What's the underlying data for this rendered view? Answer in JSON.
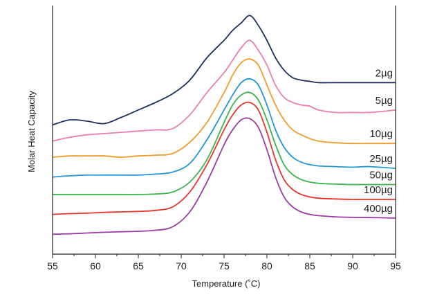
{
  "chart_data": {
    "type": "line",
    "xlabel": "Temperature (˚C)",
    "ylabel": "Molar Heat Capacity",
    "xlim": [
      55,
      95
    ],
    "x_ticks": [
      55,
      60,
      65,
      70,
      75,
      80,
      85,
      90,
      95
    ],
    "y_ticks_shown": false,
    "grid": false,
    "legend": "inline labels at right end of each curve",
    "series": [
      {
        "name": "2µg",
        "color": "#1b2f5e",
        "points": [
          [
            55,
            0.52
          ],
          [
            57,
            0.54
          ],
          [
            59,
            0.535
          ],
          [
            61,
            0.525
          ],
          [
            63,
            0.55
          ],
          [
            65,
            0.58
          ],
          [
            67,
            0.61
          ],
          [
            69,
            0.645
          ],
          [
            71,
            0.7
          ],
          [
            73,
            0.79
          ],
          [
            75,
            0.86
          ],
          [
            76,
            0.9
          ],
          [
            77,
            0.93
          ],
          [
            78,
            0.96
          ],
          [
            79,
            0.92
          ],
          [
            80,
            0.86
          ],
          [
            81,
            0.79
          ],
          [
            82,
            0.74
          ],
          [
            83,
            0.71
          ],
          [
            84,
            0.7
          ],
          [
            85,
            0.695
          ],
          [
            86,
            0.69
          ],
          [
            88,
            0.69
          ],
          [
            90,
            0.69
          ],
          [
            92,
            0.69
          ],
          [
            95,
            0.69
          ]
        ]
      },
      {
        "name": "5µg",
        "color": "#e87fb0",
        "points": [
          [
            55,
            0.455
          ],
          [
            57,
            0.47
          ],
          [
            59,
            0.48
          ],
          [
            61,
            0.485
          ],
          [
            63,
            0.49
          ],
          [
            65,
            0.495
          ],
          [
            67,
            0.5
          ],
          [
            69,
            0.505
          ],
          [
            71,
            0.56
          ],
          [
            73,
            0.65
          ],
          [
            75,
            0.73
          ],
          [
            76,
            0.78
          ],
          [
            77,
            0.83
          ],
          [
            78,
            0.86
          ],
          [
            79,
            0.82
          ],
          [
            80,
            0.76
          ],
          [
            81,
            0.68
          ],
          [
            82,
            0.63
          ],
          [
            83,
            0.61
          ],
          [
            84,
            0.6
          ],
          [
            85,
            0.595
          ],
          [
            86,
            0.58
          ],
          [
            88,
            0.57
          ],
          [
            90,
            0.57
          ],
          [
            92,
            0.57
          ],
          [
            95,
            0.58
          ]
        ]
      },
      {
        "name": "10µg",
        "color": "#f39a2a",
        "points": [
          [
            55,
            0.39
          ],
          [
            57,
            0.395
          ],
          [
            59,
            0.395
          ],
          [
            61,
            0.395
          ],
          [
            63,
            0.39
          ],
          [
            65,
            0.395
          ],
          [
            67,
            0.398
          ],
          [
            69,
            0.405
          ],
          [
            71,
            0.45
          ],
          [
            73,
            0.53
          ],
          [
            75,
            0.65
          ],
          [
            76,
            0.72
          ],
          [
            77,
            0.77
          ],
          [
            78,
            0.785
          ],
          [
            79,
            0.76
          ],
          [
            80,
            0.68
          ],
          [
            81,
            0.6
          ],
          [
            82,
            0.54
          ],
          [
            83,
            0.5
          ],
          [
            84,
            0.48
          ],
          [
            85,
            0.465
          ],
          [
            86,
            0.455
          ],
          [
            88,
            0.448
          ],
          [
            90,
            0.445
          ],
          [
            92,
            0.445
          ],
          [
            95,
            0.445
          ]
        ]
      },
      {
        "name": "25µg",
        "color": "#1f97d4",
        "points": [
          [
            55,
            0.31
          ],
          [
            57,
            0.315
          ],
          [
            59,
            0.318
          ],
          [
            61,
            0.318
          ],
          [
            63,
            0.318
          ],
          [
            65,
            0.318
          ],
          [
            67,
            0.322
          ],
          [
            69,
            0.33
          ],
          [
            71,
            0.365
          ],
          [
            73,
            0.46
          ],
          [
            75,
            0.58
          ],
          [
            76,
            0.64
          ],
          [
            77,
            0.69
          ],
          [
            78,
            0.705
          ],
          [
            79,
            0.68
          ],
          [
            80,
            0.6
          ],
          [
            81,
            0.5
          ],
          [
            82,
            0.43
          ],
          [
            83,
            0.39
          ],
          [
            84,
            0.37
          ],
          [
            85,
            0.36
          ],
          [
            86,
            0.355
          ],
          [
            88,
            0.352
          ],
          [
            90,
            0.35
          ],
          [
            92,
            0.352
          ],
          [
            95,
            0.345
          ]
        ]
      },
      {
        "name": "50µg",
        "color": "#3bb44a",
        "points": [
          [
            55,
            0.24
          ],
          [
            57,
            0.24
          ],
          [
            59,
            0.24
          ],
          [
            61,
            0.24
          ],
          [
            63,
            0.24
          ],
          [
            65,
            0.24
          ],
          [
            67,
            0.242
          ],
          [
            69,
            0.25
          ],
          [
            71,
            0.29
          ],
          [
            73,
            0.38
          ],
          [
            75,
            0.53
          ],
          [
            76,
            0.6
          ],
          [
            77,
            0.64
          ],
          [
            78,
            0.65
          ],
          [
            79,
            0.62
          ],
          [
            80,
            0.54
          ],
          [
            81,
            0.44
          ],
          [
            82,
            0.36
          ],
          [
            83,
            0.32
          ],
          [
            84,
            0.3
          ],
          [
            85,
            0.29
          ],
          [
            86,
            0.285
          ],
          [
            88,
            0.282
          ],
          [
            90,
            0.28
          ],
          [
            92,
            0.28
          ],
          [
            95,
            0.28
          ]
        ]
      },
      {
        "name": "100µg",
        "color": "#e8342a",
        "points": [
          [
            55,
            0.16
          ],
          [
            57,
            0.163
          ],
          [
            59,
            0.165
          ],
          [
            61,
            0.168
          ],
          [
            63,
            0.17
          ],
          [
            65,
            0.172
          ],
          [
            67,
            0.176
          ],
          [
            69,
            0.19
          ],
          [
            71,
            0.25
          ],
          [
            73,
            0.36
          ],
          [
            75,
            0.5
          ],
          [
            76,
            0.56
          ],
          [
            77,
            0.6
          ],
          [
            78,
            0.61
          ],
          [
            79,
            0.58
          ],
          [
            80,
            0.49
          ],
          [
            81,
            0.38
          ],
          [
            82,
            0.3
          ],
          [
            83,
            0.26
          ],
          [
            84,
            0.24
          ],
          [
            85,
            0.23
          ],
          [
            86,
            0.225
          ],
          [
            88,
            0.222
          ],
          [
            90,
            0.22
          ],
          [
            92,
            0.22
          ],
          [
            95,
            0.22
          ]
        ]
      },
      {
        "name": "400µg",
        "color": "#9b3aa5",
        "points": [
          [
            55,
            0.08
          ],
          [
            57,
            0.082
          ],
          [
            59,
            0.085
          ],
          [
            61,
            0.088
          ],
          [
            63,
            0.09
          ],
          [
            65,
            0.092
          ],
          [
            67,
            0.096
          ],
          [
            69,
            0.11
          ],
          [
            71,
            0.17
          ],
          [
            73,
            0.29
          ],
          [
            75,
            0.44
          ],
          [
            76,
            0.5
          ],
          [
            77,
            0.54
          ],
          [
            78,
            0.545
          ],
          [
            79,
            0.51
          ],
          [
            80,
            0.42
          ],
          [
            81,
            0.31
          ],
          [
            82,
            0.23
          ],
          [
            83,
            0.19
          ],
          [
            84,
            0.17
          ],
          [
            85,
            0.16
          ],
          [
            86,
            0.155
          ],
          [
            88,
            0.15
          ],
          [
            90,
            0.148
          ],
          [
            92,
            0.147
          ],
          [
            95,
            0.145
          ]
        ]
      }
    ]
  }
}
